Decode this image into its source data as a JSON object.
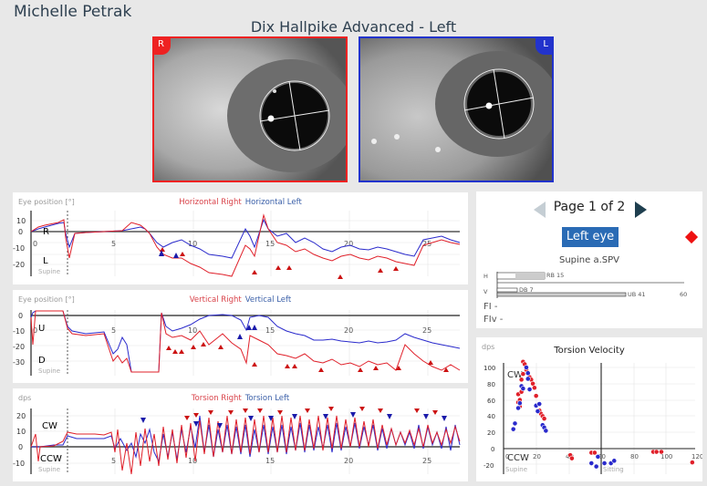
{
  "header": {
    "patient_name": "Michelle Petrak",
    "test_title": "Dix Hallpike Advanced - Left"
  },
  "eye_videos": {
    "right": {
      "tag": "R",
      "color": "#ee2222"
    },
    "left": {
      "tag": "L",
      "color": "#2233cc"
    }
  },
  "colors": {
    "right": "#e0202a",
    "left": "#2a2acc",
    "accent_button": "#2a6bb5",
    "panel_bg": "#ffffff",
    "app_bg": "#e8e8e8"
  },
  "charts": {
    "horizontal": {
      "ylabel": "Eye position [°]",
      "legend_right": "Horizontal Right",
      "legend_left": "Horizontal Left",
      "upper_label": "R",
      "lower_label": "L",
      "position_label": "Supine",
      "y_ticks": [
        "10",
        "0",
        "-10",
        "-20"
      ],
      "x_ticks": [
        "0",
        "5",
        "10",
        "15",
        "20",
        "25"
      ]
    },
    "vertical": {
      "ylabel": "Eye position [°]",
      "legend_right": "Vertical Right",
      "legend_left": "Vertical Left",
      "upper_label": "U",
      "lower_label": "D",
      "position_label": "Supine",
      "y_ticks": [
        "0",
        "-10",
        "-20",
        "-30"
      ],
      "x_ticks": [
        "0",
        "5",
        "10",
        "15",
        "20",
        "25"
      ]
    },
    "torsion": {
      "ylabel": "dps",
      "legend_right": "Torsion Right",
      "legend_left": "Torsion Left",
      "upper_label": "CW",
      "lower_label": "CCW",
      "position_label": "Supine",
      "y_ticks": [
        "20",
        "10",
        "0",
        "-10"
      ],
      "x_ticks": [
        "0",
        "5",
        "10",
        "15",
        "20",
        "25"
      ]
    }
  },
  "pager": {
    "page_text": "Page 1 of 2",
    "eye_button": "Left eye",
    "spv_title": "Supine a.SPV",
    "h_label": "H",
    "v_label": "V",
    "h_value": "RB 15",
    "v_value_small": "DB 7",
    "v_value_large": "UB 41",
    "scale_max": "60",
    "fi_label": "FI -",
    "fiv_label": "FIv -"
  },
  "torsion_velocity": {
    "title": "Torsion Velocity",
    "ylabel": "dps",
    "upper_label": "CW",
    "lower_label": "CCW",
    "left_position": "Supine",
    "right_position": "Sitting",
    "y_ticks": [
      "100",
      "80",
      "60",
      "40",
      "20",
      "0",
      "-20"
    ],
    "x_ticks": [
      "0",
      "20",
      "40",
      "60",
      "80",
      "100",
      "120"
    ]
  },
  "chart_data": {
    "type": "scatter",
    "title": "Torsion Velocity",
    "xlabel": "",
    "ylabel": "dps",
    "xlim": [
      0,
      120
    ],
    "ylim": [
      -25,
      110
    ],
    "series": [
      {
        "name": "Right",
        "color": "#e0202a",
        "points": [
          [
            9,
            57
          ],
          [
            9,
            67
          ],
          [
            10,
            60
          ],
          [
            10,
            52
          ],
          [
            11,
            70
          ],
          [
            11,
            85
          ],
          [
            12,
            92
          ],
          [
            12,
            107
          ],
          [
            13,
            104
          ],
          [
            14,
            97
          ],
          [
            16,
            88
          ],
          [
            17,
            85
          ],
          [
            18,
            80
          ],
          [
            19,
            75
          ],
          [
            20,
            65
          ],
          [
            22,
            47
          ],
          [
            23,
            43
          ],
          [
            24,
            40
          ],
          [
            25,
            37
          ],
          [
            41,
            -8
          ],
          [
            42,
            -12
          ],
          [
            54,
            -5
          ],
          [
            56,
            -5
          ],
          [
            92,
            -4
          ],
          [
            94,
            -4
          ],
          [
            97,
            -4
          ],
          [
            116,
            -17
          ]
        ]
      },
      {
        "name": "Left",
        "color": "#2a2acc",
        "points": [
          [
            6,
            24
          ],
          [
            7,
            31
          ],
          [
            9,
            50
          ],
          [
            10,
            56
          ],
          [
            11,
            77
          ],
          [
            12,
            74
          ],
          [
            14,
            100
          ],
          [
            15,
            93
          ],
          [
            15,
            86
          ],
          [
            16,
            73
          ],
          [
            20,
            53
          ],
          [
            21,
            46
          ],
          [
            22,
            55
          ],
          [
            24,
            29
          ],
          [
            25,
            26
          ],
          [
            26,
            22
          ],
          [
            54,
            -18
          ],
          [
            57,
            -22
          ],
          [
            58,
            -10
          ],
          [
            62,
            -18
          ],
          [
            66,
            -18
          ],
          [
            68,
            -15
          ]
        ]
      }
    ]
  }
}
